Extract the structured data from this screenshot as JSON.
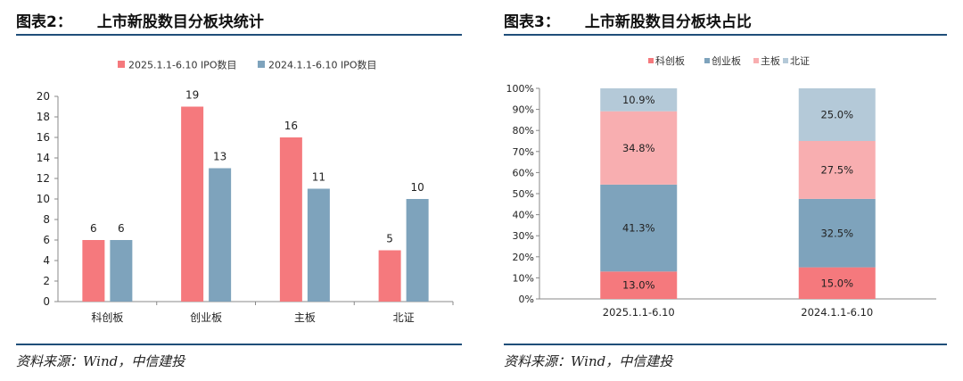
{
  "colors": {
    "salmon": "#f5797d",
    "steel": "#7ea3bc",
    "pink": "#f8aeb0",
    "lightblue": "#b4c9d8",
    "rule": "#1f4e79"
  },
  "left_panel": {
    "title_num": "图表2：",
    "title_text": "上市新股数目分板块统计",
    "source": "资料来源：Wind，中信建投"
  },
  "right_panel": {
    "title_num": "图表3：",
    "title_text": "上市新股数目分板块占比",
    "source": "资料来源：Wind，中信建投"
  },
  "chart_data": [
    {
      "type": "bar",
      "categories": [
        "科创板",
        "创业板",
        "主板",
        "北证"
      ],
      "series": [
        {
          "name": "2025.1.1-6.10 IPO数目",
          "values": [
            6,
            19,
            16,
            5
          ],
          "color": "#f5797d"
        },
        {
          "name": "2024.1.1-6.10 IPO数目",
          "values": [
            6,
            13,
            11,
            10
          ],
          "color": "#7ea3bc"
        }
      ],
      "ylim": [
        0,
        20
      ],
      "yticks": [
        "0",
        "2",
        "4",
        "6",
        "8",
        "10",
        "12",
        "14",
        "16",
        "18",
        "20"
      ],
      "grid": false,
      "legend": "top"
    },
    {
      "type": "bar",
      "stacked": true,
      "categories": [
        "2025.1.1-6.10",
        "2024.1.1-6.10"
      ],
      "series": [
        {
          "name": "科创板",
          "values": [
            13.0,
            15.0
          ],
          "labels": [
            "13.0%",
            "15.0%"
          ],
          "color": "#f5797d"
        },
        {
          "name": "创业板",
          "values": [
            41.3,
            32.5
          ],
          "labels": [
            "41.3%",
            "32.5%"
          ],
          "color": "#7ea3bc"
        },
        {
          "name": "主板",
          "values": [
            34.8,
            27.5
          ],
          "labels": [
            "34.8%",
            "27.5%"
          ],
          "color": "#f8aeb0"
        },
        {
          "name": "北证",
          "values": [
            10.9,
            25.0
          ],
          "labels": [
            "10.9%",
            "25.0%"
          ],
          "color": "#b4c9d8"
        }
      ],
      "ylim": [
        0,
        100
      ],
      "yticks": [
        "0%",
        "10%",
        "20%",
        "30%",
        "40%",
        "50%",
        "60%",
        "70%",
        "80%",
        "90%",
        "100%"
      ],
      "grid": false,
      "legend": "top"
    }
  ]
}
